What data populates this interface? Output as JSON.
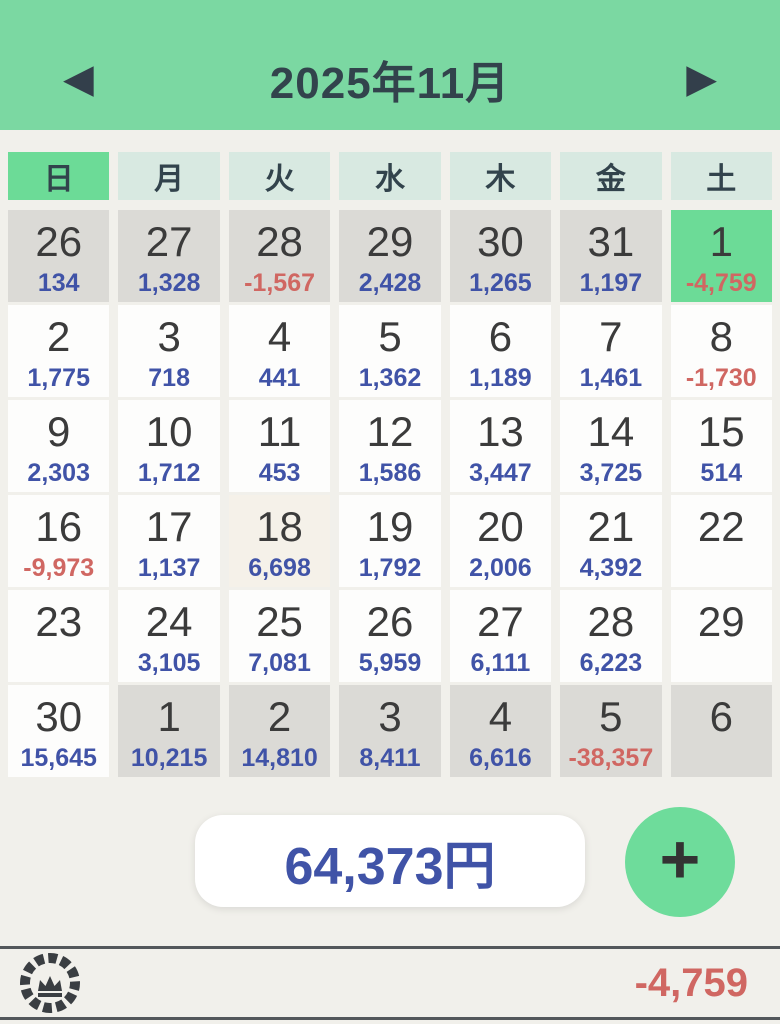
{
  "header": {
    "title": "2025年11月",
    "prev_icon": "◀",
    "next_icon": "▶"
  },
  "weekdays": [
    {
      "label": "日",
      "en": "sunday"
    },
    {
      "label": "月",
      "en": "monday"
    },
    {
      "label": "火",
      "en": "tuesday"
    },
    {
      "label": "水",
      "en": "wednesday"
    },
    {
      "label": "木",
      "en": "thursday"
    },
    {
      "label": "金",
      "en": "friday"
    },
    {
      "label": "土",
      "en": "saturday"
    }
  ],
  "calendar": {
    "weeks": [
      [
        {
          "day": "26",
          "value": "134",
          "color": "blue",
          "type": "other"
        },
        {
          "day": "27",
          "value": "1,328",
          "color": "blue",
          "type": "other"
        },
        {
          "day": "28",
          "value": "-1,567",
          "color": "red",
          "type": "other"
        },
        {
          "day": "29",
          "value": "2,428",
          "color": "blue",
          "type": "other"
        },
        {
          "day": "30",
          "value": "1,265",
          "color": "blue",
          "type": "other"
        },
        {
          "day": "31",
          "value": "1,197",
          "color": "blue",
          "type": "other"
        },
        {
          "day": "1",
          "value": "-4,759",
          "color": "red",
          "type": "today"
        }
      ],
      [
        {
          "day": "2",
          "value": "1,775",
          "color": "blue",
          "type": "current"
        },
        {
          "day": "3",
          "value": "718",
          "color": "blue",
          "type": "current"
        },
        {
          "day": "4",
          "value": "441",
          "color": "blue",
          "type": "current"
        },
        {
          "day": "5",
          "value": "1,362",
          "color": "blue",
          "type": "current"
        },
        {
          "day": "6",
          "value": "1,189",
          "color": "blue",
          "type": "current"
        },
        {
          "day": "7",
          "value": "1,461",
          "color": "blue",
          "type": "current"
        },
        {
          "day": "8",
          "value": "-1,730",
          "color": "red",
          "type": "current"
        }
      ],
      [
        {
          "day": "9",
          "value": "2,303",
          "color": "blue",
          "type": "current"
        },
        {
          "day": "10",
          "value": "1,712",
          "color": "blue",
          "type": "current"
        },
        {
          "day": "11",
          "value": "453",
          "color": "blue",
          "type": "current"
        },
        {
          "day": "12",
          "value": "1,586",
          "color": "blue",
          "type": "current"
        },
        {
          "day": "13",
          "value": "3,447",
          "color": "blue",
          "type": "current"
        },
        {
          "day": "14",
          "value": "3,725",
          "color": "blue",
          "type": "current"
        },
        {
          "day": "15",
          "value": "514",
          "color": "blue",
          "type": "current"
        }
      ],
      [
        {
          "day": "16",
          "value": "-9,973",
          "color": "red",
          "type": "current"
        },
        {
          "day": "17",
          "value": "1,137",
          "color": "blue",
          "type": "current"
        },
        {
          "day": "18",
          "value": "6,698",
          "color": "blue",
          "type": "selected"
        },
        {
          "day": "19",
          "value": "1,792",
          "color": "blue",
          "type": "current"
        },
        {
          "day": "20",
          "value": "2,006",
          "color": "blue",
          "type": "current"
        },
        {
          "day": "21",
          "value": "4,392",
          "color": "blue",
          "type": "current"
        },
        {
          "day": "22",
          "value": "",
          "color": "",
          "type": "current"
        }
      ],
      [
        {
          "day": "23",
          "value": "",
          "color": "",
          "type": "current"
        },
        {
          "day": "24",
          "value": "3,105",
          "color": "blue",
          "type": "current"
        },
        {
          "day": "25",
          "value": "7,081",
          "color": "blue",
          "type": "current"
        },
        {
          "day": "26",
          "value": "5,959",
          "color": "blue",
          "type": "current"
        },
        {
          "day": "27",
          "value": "6,111",
          "color": "blue",
          "type": "current"
        },
        {
          "day": "28",
          "value": "6,223",
          "color": "blue",
          "type": "current"
        },
        {
          "day": "29",
          "value": "",
          "color": "",
          "type": "current"
        }
      ],
      [
        {
          "day": "30",
          "value": "15,645",
          "color": "blue",
          "type": "current"
        },
        {
          "day": "1",
          "value": "10,215",
          "color": "blue",
          "type": "other"
        },
        {
          "day": "2",
          "value": "14,810",
          "color": "blue",
          "type": "other"
        },
        {
          "day": "3",
          "value": "8,411",
          "color": "blue",
          "type": "other"
        },
        {
          "day": "4",
          "value": "6,616",
          "color": "blue",
          "type": "other"
        },
        {
          "day": "5",
          "value": "-38,357",
          "color": "red",
          "type": "other"
        },
        {
          "day": "6",
          "value": "",
          "color": "",
          "type": "other"
        }
      ]
    ]
  },
  "total": {
    "label": "64,373円",
    "plus": "+"
  },
  "footer": {
    "amount": "-4,759"
  },
  "colors": {
    "header_green": "#7bd8a2",
    "today_green": "#6cdb97",
    "weekday_teal": "#d8e9e1",
    "other_month_gray": "#dbdad6",
    "income_blue": "#4053a7",
    "expense_red": "#d06762",
    "page_bg": "#f1f0eb"
  }
}
